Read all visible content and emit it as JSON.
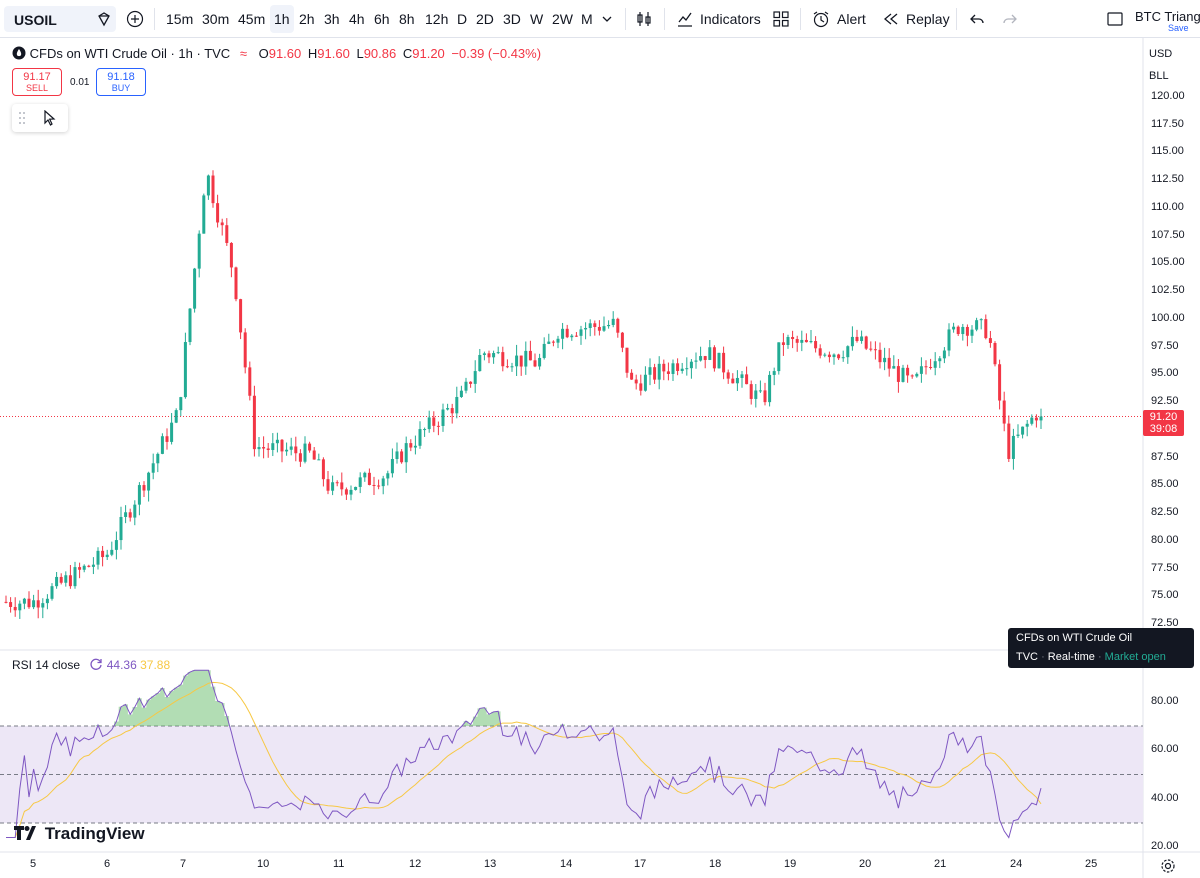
{
  "toolbar": {
    "symbol": "USOIL",
    "timeframes": [
      "15m",
      "30m",
      "45m",
      "1h",
      "2h",
      "3h",
      "4h",
      "6h",
      "8h",
      "12h",
      "D",
      "2D",
      "3D",
      "W",
      "2W",
      "M"
    ],
    "active_timeframe": "1h",
    "indicators_label": "Indicators",
    "alert_label": "Alert",
    "replay_label": "Replay",
    "layout_name": "BTC Triangl",
    "save_label": "Save"
  },
  "legend": {
    "title": "CFDs on WTI Crude Oil · 1h · TVC",
    "o_key": "O",
    "o_val": "91.60",
    "h_key": "H",
    "h_val": "91.60",
    "l_key": "L",
    "l_val": "90.86",
    "c_key": "C",
    "c_val": "91.20",
    "change": "−0.39 (−0.43%)",
    "sell_price": "91.17",
    "sell_label": "SELL",
    "spread": "0.01",
    "buy_price": "91.18",
    "buy_label": "BUY"
  },
  "axis": {
    "currency": "USD",
    "unit": "BLL",
    "price_ticks": [
      "120.00",
      "117.50",
      "115.00",
      "112.50",
      "110.00",
      "107.50",
      "105.00",
      "102.50",
      "100.00",
      "97.50",
      "95.00",
      "92.50",
      "87.50",
      "85.00",
      "82.50",
      "80.00",
      "77.50",
      "75.00",
      "72.50"
    ],
    "rsi_ticks": [
      "80.00",
      "60.00",
      "40.00",
      "20.00"
    ],
    "date_ticks": [
      "5",
      "6",
      "7",
      "10",
      "11",
      "12",
      "13",
      "14",
      "17",
      "18",
      "19",
      "20",
      "21",
      "24",
      "25"
    ],
    "current_price": "91.20",
    "countdown": "39:08"
  },
  "rsi": {
    "label": "RSI 14 close",
    "value": "44.36",
    "ma_value": "37.88"
  },
  "tooltip": {
    "title": "CFDs on WTI Crude Oil",
    "source": "TVC",
    "mode": "Real-time",
    "status": "Market open"
  },
  "brand": "TradingView",
  "colors": {
    "up": "#22ab94",
    "down": "#f23645",
    "rsi_line": "#7e57c2",
    "rsi_ma": "#f7c844",
    "rsi_band": "#ede7f6",
    "accent": "#2962ff"
  },
  "chart_data": [
    {
      "type": "candlestick",
      "title": "CFDs on WTI Crude Oil · 1h · TVC",
      "x_dates": [
        "5",
        "6",
        "7",
        "10",
        "11",
        "12",
        "13",
        "14",
        "17",
        "18",
        "19",
        "20",
        "21",
        "24",
        "25"
      ],
      "ylim": [
        72.5,
        121
      ],
      "trend_path": [
        [
          "5",
          74.5
        ],
        [
          "6",
          78.8
        ],
        [
          "7",
          91.5
        ],
        [
          "7",
          113.5
        ],
        [
          "7",
          104.0
        ],
        [
          "10",
          88.5
        ],
        [
          "10",
          87.8
        ],
        [
          "11",
          84.5
        ],
        [
          "11",
          86.0
        ],
        [
          "12",
          88.5
        ],
        [
          "12",
          93.0
        ],
        [
          "13",
          97.0
        ],
        [
          "13",
          96.0
        ],
        [
          "14",
          99.0
        ],
        [
          "14",
          99.5
        ],
        [
          "17",
          94.0
        ],
        [
          "17",
          96.5
        ],
        [
          "18",
          97.0
        ],
        [
          "18",
          92.5
        ],
        [
          "19",
          98.0
        ],
        [
          "19",
          97.0
        ],
        [
          "20",
          98.0
        ],
        [
          "20",
          94.0
        ],
        [
          "21",
          96.5
        ],
        [
          "21",
          99.5
        ],
        [
          "21",
          99.0
        ],
        [
          "24",
          88.0
        ],
        [
          "24",
          91.5
        ],
        [
          "24",
          91.2
        ]
      ],
      "last": 91.2
    },
    {
      "type": "line",
      "title": "RSI 14 close",
      "ylim": [
        20,
        95
      ],
      "band": [
        30,
        70
      ],
      "mid": 50,
      "last_rsi": 44.36,
      "last_ma": 37.88
    }
  ]
}
